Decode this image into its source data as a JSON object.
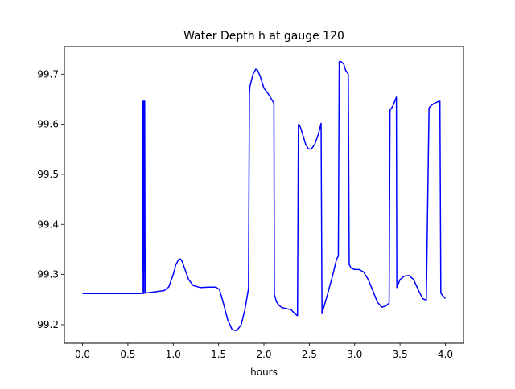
{
  "chart_data": {
    "type": "line",
    "title": "Water Depth h at gauge 120",
    "xlabel": "hours",
    "ylabel": "",
    "xlim": [
      -0.2,
      4.2
    ],
    "ylim": [
      99.163,
      99.755
    ],
    "x_ticks": [
      0.0,
      0.5,
      1.0,
      1.5,
      2.0,
      2.5,
      3.0,
      3.5,
      4.0
    ],
    "x_tick_labels": [
      "0.0",
      "0.5",
      "1.0",
      "1.5",
      "2.0",
      "2.5",
      "3.0",
      "3.5",
      "4.0"
    ],
    "y_ticks": [
      99.2,
      99.3,
      99.4,
      99.5,
      99.6,
      99.7
    ],
    "y_tick_labels": [
      "99.2",
      "99.3",
      "99.4",
      "99.5",
      "99.6",
      "99.7"
    ],
    "grid": false,
    "legend": "none",
    "series": [
      {
        "color": "#0000ff",
        "x": [
          0.0,
          0.3,
          0.66,
          0.665,
          0.67,
          0.675,
          0.68,
          0.685,
          0.69,
          0.78,
          0.9,
          0.95,
          1.0,
          1.03,
          1.06,
          1.08,
          1.1,
          1.13,
          1.17,
          1.22,
          1.3,
          1.4,
          1.47,
          1.51,
          1.55,
          1.6,
          1.65,
          1.7,
          1.75,
          1.79,
          1.83,
          1.84,
          1.845,
          1.88,
          1.91,
          1.93,
          1.96,
          2.0,
          2.05,
          2.11,
          2.115,
          2.14,
          2.17,
          2.2,
          2.25,
          2.3,
          2.34,
          2.37,
          2.38,
          2.4,
          2.43,
          2.46,
          2.49,
          2.52,
          2.56,
          2.6,
          2.63,
          2.64,
          2.7,
          2.76,
          2.8,
          2.82,
          2.83,
          2.85,
          2.88,
          2.9,
          2.93,
          2.94,
          2.96,
          3.0,
          3.05,
          3.1,
          3.15,
          3.2,
          3.25,
          3.3,
          3.34,
          3.38,
          3.39,
          3.42,
          3.46,
          3.465,
          3.5,
          3.55,
          3.6,
          3.65,
          3.7,
          3.75,
          3.79,
          3.82,
          3.83,
          3.87,
          3.93,
          3.94,
          3.95,
          3.97,
          4.0
        ],
        "y": [
          99.262,
          99.262,
          99.262,
          99.646,
          99.646,
          99.262,
          99.646,
          99.646,
          99.263,
          99.265,
          99.268,
          99.275,
          99.3,
          99.32,
          99.33,
          99.331,
          99.325,
          99.31,
          99.29,
          99.278,
          99.274,
          99.275,
          99.275,
          99.27,
          99.245,
          99.21,
          99.19,
          99.188,
          99.2,
          99.23,
          99.272,
          99.66,
          99.675,
          99.7,
          99.71,
          99.708,
          99.695,
          99.672,
          99.66,
          99.642,
          99.26,
          99.245,
          99.238,
          99.234,
          99.232,
          99.23,
          99.222,
          99.218,
          99.6,
          99.595,
          99.578,
          99.56,
          99.551,
          99.55,
          99.56,
          99.58,
          99.602,
          99.222,
          99.26,
          99.3,
          99.33,
          99.337,
          99.725,
          99.725,
          99.72,
          99.708,
          99.7,
          99.32,
          99.313,
          99.31,
          99.31,
          99.305,
          99.29,
          99.268,
          99.245,
          99.235,
          99.237,
          99.243,
          99.628,
          99.636,
          99.654,
          99.274,
          99.29,
          99.297,
          99.298,
          99.29,
          99.27,
          99.252,
          99.249,
          99.632,
          99.635,
          99.641,
          99.646,
          99.646,
          99.263,
          99.258,
          99.252
        ]
      }
    ]
  }
}
